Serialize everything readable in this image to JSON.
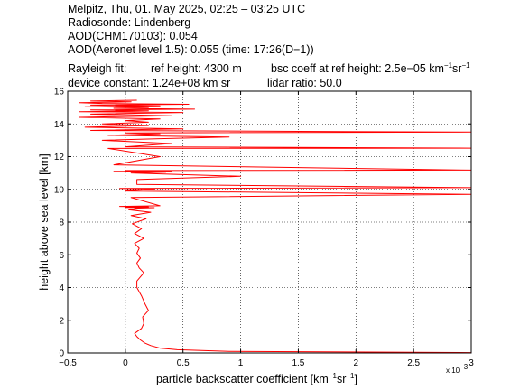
{
  "header": {
    "line1": "Melpitz, Thu, 01. May 2025, 02:25 – 03:25 UTC",
    "line2": "Radiosonde: Lindenberg",
    "line3": "AOD(CHM170103): 0.054",
    "line4": "AOD(Aeronet level 1.5): 0.055   (time: 17:26(D−1))",
    "rayleigh_label": "Rayleigh fit:",
    "ref_height": "ref height: 4300 m",
    "bsc_prefix": "bsc coeff at ref height: 2.5e−05 km",
    "bsc_unit2": "sr",
    "exp": "−1",
    "device_constant": "device constant: 1.24e+08 km sr",
    "lidar_ratio": "lidar ratio: 50.0"
  },
  "chart_data": {
    "type": "line",
    "xlabel": "particle backscatter coefficient [km⁻¹sr⁻¹]",
    "xlabel_main": "particle backscatter coefficient [km",
    "xlabel_mid": "sr",
    "xlabel_end": "]",
    "x_exp": "−1",
    "ylabel": "height above sea level [km]",
    "x_multiplier": "x 10",
    "x_multiplier_exp": "−3",
    "xlim": [
      -0.5,
      3
    ],
    "ylim": [
      0,
      16
    ],
    "xticks": [
      -0.5,
      0,
      0.5,
      1,
      1.5,
      2,
      2.5,
      3
    ],
    "xtick_labels": [
      "−0.5",
      "0",
      "0.5",
      "1",
      "1.5",
      "2",
      "2.5",
      "3"
    ],
    "yticks": [
      0,
      2,
      4,
      6,
      8,
      10,
      12,
      14,
      16
    ],
    "ytick_labels": [
      "0",
      "2",
      "4",
      "6",
      "8",
      "10",
      "12",
      "14",
      "16"
    ],
    "grid": true,
    "series_color": "#ff0000",
    "series": [
      {
        "x": [
          3.0,
          0.9,
          0.45,
          0.3,
          0.22,
          0.17,
          0.13,
          0.1,
          0.08,
          0.14,
          0.16,
          0.15,
          0.2,
          0.17,
          0.14,
          0.1,
          0.1,
          0.16,
          0.12,
          0.1,
          0.13,
          0.1,
          0.12,
          0.08,
          0.16,
          0.08,
          0.14,
          0.06,
          0.18,
          0.05,
          0.22,
          0.03,
          0.15,
          0.08,
          0.25,
          0.0,
          0.2,
          -0.05,
          0.3,
          0.05,
          3.0,
          0.0,
          0.25,
          -0.05,
          3.0,
          0.1,
          0.1,
          1.0,
          0.05,
          0.35,
          -0.1,
          0.4,
          0.0,
          3.0,
          -0.1,
          0.3,
          -0.15,
          3.0,
          0.0,
          0.4,
          -0.2,
          0.3,
          0.9,
          -0.15,
          0.3,
          0.0,
          3.0,
          -0.3,
          0.5,
          -0.35,
          0.2,
          -0.2,
          0.2,
          0.0,
          0.3,
          -0.4,
          0.4,
          -0.3,
          0.5,
          -0.4,
          0.2,
          -0.3,
          0.6,
          -0.1,
          0.2,
          -0.35,
          0.3,
          -0.3,
          0.55,
          -0.2,
          -0.4,
          0.05,
          -0.3,
          0.1
        ],
        "y": [
          0.02,
          0.1,
          0.2,
          0.3,
          0.45,
          0.6,
          0.8,
          1.0,
          1.2,
          1.5,
          1.8,
          2.2,
          2.6,
          3.0,
          3.5,
          4.0,
          4.4,
          4.9,
          5.2,
          5.5,
          5.8,
          6.1,
          6.4,
          6.7,
          7.0,
          7.3,
          7.6,
          7.9,
          8.2,
          8.4,
          8.6,
          8.75,
          8.82,
          8.85,
          8.88,
          8.9,
          8.93,
          8.96,
          9.0,
          9.5,
          9.7,
          9.9,
          10.0,
          10.05,
          10.1,
          10.3,
          10.6,
          10.8,
          11.0,
          11.05,
          11.1,
          11.12,
          11.15,
          11.18,
          11.5,
          12.0,
          12.5,
          12.52,
          12.6,
          12.8,
          13.0,
          13.1,
          13.2,
          13.3,
          13.4,
          13.45,
          13.5,
          13.6,
          13.7,
          13.8,
          13.9,
          14.0,
          14.1,
          14.2,
          14.3,
          14.4,
          14.5,
          14.6,
          14.7,
          14.75,
          14.8,
          14.85,
          14.9,
          14.95,
          15.0,
          15.05,
          15.1,
          15.15,
          15.2,
          15.25,
          15.3,
          15.35,
          15.4,
          15.45
        ]
      }
    ]
  }
}
